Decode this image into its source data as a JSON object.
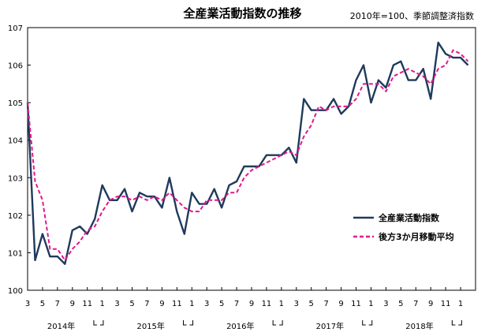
{
  "chart_data": {
    "type": "line",
    "title": "全産業活動指数の推移",
    "subtitle": "2010年=100、季節調整済指数",
    "ylim": [
      100,
      107
    ],
    "y_ticks": [
      "100",
      "101",
      "102",
      "103",
      "104",
      "105",
      "106",
      "107"
    ],
    "x_tick_labels": [
      "3",
      "5",
      "7",
      "9",
      "11",
      "1",
      "3",
      "5",
      "7",
      "9",
      "11",
      "1",
      "3",
      "5",
      "7",
      "9",
      "11",
      "1",
      "3",
      "5",
      "7",
      "9",
      "11",
      "1",
      "3",
      "5",
      "7",
      "9",
      "11",
      "1"
    ],
    "year_labels": [
      {
        "label": "2014年",
        "month_index": 4.5
      },
      {
        "label": "2015年",
        "month_index": 16.5
      },
      {
        "label": "2016年",
        "month_index": 28.5
      },
      {
        "label": "2017年",
        "month_index": 40.5
      },
      {
        "label": "2018年",
        "month_index": 52.5
      }
    ],
    "series": [
      {
        "name": "全産業活動指数",
        "color": "#1f3a5c",
        "dash": false,
        "values": [
          105.0,
          100.8,
          101.5,
          100.9,
          100.9,
          100.7,
          101.6,
          101.7,
          101.5,
          101.9,
          102.8,
          102.4,
          102.4,
          102.7,
          102.1,
          102.6,
          102.5,
          102.5,
          102.2,
          103.0,
          102.1,
          101.5,
          102.6,
          102.3,
          102.3,
          102.7,
          102.2,
          102.8,
          102.9,
          103.3,
          103.3,
          103.3,
          103.6,
          103.6,
          103.6,
          103.8,
          103.4,
          105.1,
          104.8,
          104.8,
          104.8,
          105.1,
          104.7,
          104.9,
          105.6,
          106.0,
          105.0,
          105.6,
          105.4,
          106.0,
          106.1,
          105.6,
          105.6,
          105.9,
          105.1,
          106.6,
          106.3,
          106.2,
          106.2,
          106.0
        ]
      },
      {
        "name": "後方3か月移動平均",
        "color": "#e0188c",
        "dash": true,
        "values": [
          105.0,
          102.9,
          102.4,
          101.1,
          101.1,
          100.8,
          101.1,
          101.3,
          101.6,
          101.7,
          102.1,
          102.4,
          102.5,
          102.5,
          102.4,
          102.5,
          102.4,
          102.5,
          102.4,
          102.6,
          102.4,
          102.2,
          102.1,
          102.1,
          102.4,
          102.4,
          102.4,
          102.6,
          102.6,
          103.0,
          103.2,
          103.3,
          103.4,
          103.5,
          103.6,
          103.7,
          103.6,
          104.1,
          104.4,
          104.9,
          104.8,
          104.9,
          104.9,
          104.9,
          105.1,
          105.5,
          105.5,
          105.5,
          105.3,
          105.7,
          105.8,
          105.9,
          105.8,
          105.7,
          105.5,
          105.9,
          106.0,
          106.4,
          106.3,
          106.1
        ]
      }
    ],
    "legend_position": "right-middle",
    "grid": false
  }
}
